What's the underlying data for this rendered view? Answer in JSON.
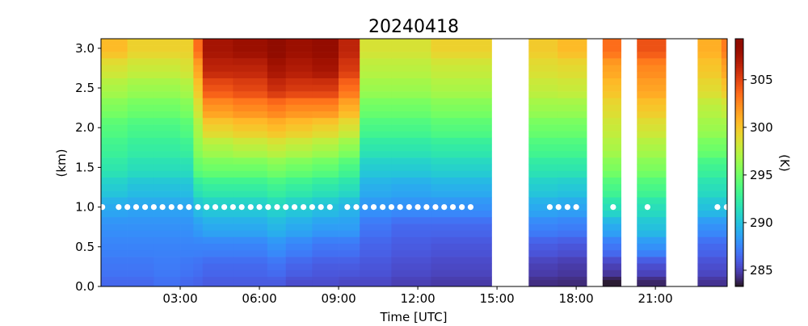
{
  "chart_data": {
    "type": "heatmap",
    "title": "20240418",
    "xlabel": "Time [UTC]",
    "ylabel": "(km)",
    "colorbar_label": "(K)",
    "colormap": "turbo",
    "xlim": [
      0,
      23.72
    ],
    "ylim": [
      0,
      3.12
    ],
    "clim": [
      283.3,
      309.3
    ],
    "x_ticks": [
      {
        "value": 3,
        "label": "03:00"
      },
      {
        "value": 6,
        "label": "06:00"
      },
      {
        "value": 9,
        "label": "09:00"
      },
      {
        "value": 12,
        "label": "12:00"
      },
      {
        "value": 15,
        "label": "15:00"
      },
      {
        "value": 18,
        "label": "18:00"
      },
      {
        "value": 21,
        "label": "21:00"
      }
    ],
    "y_ticks": [
      {
        "value": 0,
        "label": "0.0"
      },
      {
        "value": 0.5,
        "label": "0.5"
      },
      {
        "value": 1.0,
        "label": "1.0"
      },
      {
        "value": 1.5,
        "label": "1.5"
      },
      {
        "value": 2.0,
        "label": "2.0"
      },
      {
        "value": 2.5,
        "label": "2.5"
      },
      {
        "value": 3.0,
        "label": "3.0"
      }
    ],
    "colorbar_ticks": [
      {
        "value": 285,
        "label": "285"
      },
      {
        "value": 290,
        "label": "290"
      },
      {
        "value": 295,
        "label": "295"
      },
      {
        "value": 300,
        "label": "300"
      },
      {
        "value": 305,
        "label": "305"
      }
    ],
    "heights_km": [
      0,
      0.25,
      0.5,
      0.75,
      1.0,
      1.25,
      1.5,
      1.75,
      2.0,
      2.25,
      2.5,
      2.75,
      3.0
    ],
    "segments": [
      {
        "start": 0.0,
        "end": 1.0,
        "values": [
          286.5,
          287,
          287.5,
          288,
          289,
          290.5,
          292,
          293,
          294,
          295.5,
          297,
          298.5,
          300.5
        ]
      },
      {
        "start": 1.0,
        "end": 2.0,
        "values": [
          286.5,
          287,
          287.5,
          288,
          288.8,
          290,
          291.5,
          292.5,
          293.5,
          295,
          296.5,
          298,
          299.5
        ]
      },
      {
        "start": 2.0,
        "end": 3.0,
        "values": [
          286.8,
          287.2,
          287.5,
          288,
          288.8,
          290,
          291.5,
          292.5,
          293.5,
          295,
          296.5,
          298,
          299.5
        ]
      },
      {
        "start": 3.0,
        "end": 3.5,
        "values": [
          286.5,
          287,
          287.5,
          288,
          288.8,
          290,
          291.5,
          292.8,
          294,
          295.5,
          297,
          298.5,
          299.5
        ]
      },
      {
        "start": 3.5,
        "end": 3.85,
        "values": [
          286.3,
          286.8,
          287.5,
          288.5,
          290,
          292,
          294.5,
          296,
          297,
          298.5,
          300,
          301.5,
          303.5
        ]
      },
      {
        "start": 3.85,
        "end": 5.0,
        "values": [
          286,
          286.5,
          287.5,
          289,
          290.5,
          292.5,
          295,
          297,
          299.5,
          302,
          304.5,
          306.5,
          307.5
        ]
      },
      {
        "start": 5.0,
        "end": 6.3,
        "values": [
          286,
          286.5,
          287.5,
          289,
          290.5,
          292.5,
          295,
          297.5,
          300,
          302.5,
          305,
          306.5,
          308
        ]
      },
      {
        "start": 6.3,
        "end": 7.0,
        "values": [
          286,
          286.8,
          288,
          289.5,
          291,
          293,
          295.5,
          298,
          300.5,
          303,
          306,
          307.5,
          309
        ]
      },
      {
        "start": 7.0,
        "end": 8.0,
        "values": [
          285.5,
          286.3,
          287.5,
          289,
          290.5,
          292.5,
          295,
          297.5,
          300,
          302.5,
          305.5,
          307,
          308
        ]
      },
      {
        "start": 8.0,
        "end": 9.0,
        "values": [
          285.5,
          286,
          287,
          288.5,
          290,
          292,
          294.5,
          297,
          299.5,
          302.5,
          305.5,
          307.5,
          308.5
        ]
      },
      {
        "start": 9.0,
        "end": 9.8,
        "values": [
          285.3,
          286,
          287,
          288.5,
          289.5,
          291.5,
          293.5,
          296,
          298.5,
          301,
          303.5,
          305.5,
          306.5
        ]
      },
      {
        "start": 9.8,
        "end": 11.0,
        "values": [
          285.3,
          285.8,
          286.3,
          287,
          288.2,
          289.2,
          290.5,
          292,
          293.5,
          295,
          296.5,
          297.5,
          298.5
        ]
      },
      {
        "start": 11.0,
        "end": 12.5,
        "values": [
          285,
          285.5,
          286,
          286.5,
          288,
          289,
          290.5,
          292,
          293.5,
          295,
          296.5,
          297.5,
          298.5
        ]
      },
      {
        "start": 12.5,
        "end": 14.8,
        "values": [
          284.8,
          285.3,
          285.8,
          286.5,
          288,
          289.3,
          290.8,
          292.3,
          294,
          295.5,
          297,
          298,
          299.5
        ]
      },
      {
        "start": 16.2,
        "end": 17.3,
        "values": [
          284.3,
          285,
          286,
          287.5,
          289,
          290.5,
          292,
          293.5,
          295,
          296.5,
          297.8,
          298.8,
          299.8
        ]
      },
      {
        "start": 17.3,
        "end": 18.4,
        "values": [
          284.2,
          284.8,
          285.8,
          287.3,
          288.8,
          290.3,
          292,
          293.5,
          295,
          296.5,
          298,
          299,
          300.5
        ]
      },
      {
        "start": 19.0,
        "end": 19.7,
        "values": [
          283.5,
          285,
          287,
          289,
          291.5,
          293.5,
          295.5,
          297,
          298,
          299,
          300.3,
          301.5,
          303.5
        ]
      },
      {
        "start": 20.3,
        "end": 21.4,
        "values": [
          284,
          285.5,
          288,
          290,
          291.5,
          293.5,
          295.5,
          297,
          298.5,
          300,
          301.5,
          302.5,
          304.5
        ]
      },
      {
        "start": 22.6,
        "end": 23.5,
        "values": [
          284.5,
          285.5,
          286.5,
          288,
          290,
          291.5,
          293,
          295,
          296.5,
          297.5,
          299,
          300,
          301
        ]
      },
      {
        "start": 23.5,
        "end": 23.72,
        "values": [
          284.5,
          285.5,
          286.5,
          288,
          290,
          291.5,
          293,
          295,
          296.5,
          298,
          300,
          301.5,
          303
        ]
      }
    ],
    "markers": {
      "height_km": 1.0,
      "color": "#ffffff",
      "times": [
        0.05,
        0.67,
        1.0,
        1.33,
        1.67,
        2.0,
        2.33,
        2.67,
        3.0,
        3.33,
        3.67,
        4.0,
        4.33,
        4.67,
        5.0,
        5.33,
        5.67,
        6.0,
        6.33,
        6.67,
        7.0,
        7.33,
        7.67,
        8.0,
        8.33,
        8.67,
        9.33,
        9.67,
        10.0,
        10.33,
        10.67,
        11.0,
        11.33,
        11.67,
        12.0,
        12.33,
        12.67,
        13.0,
        13.33,
        13.67,
        14.0,
        17.0,
        17.33,
        17.67,
        18.0,
        19.4,
        20.7,
        23.35,
        23.7
      ]
    }
  }
}
